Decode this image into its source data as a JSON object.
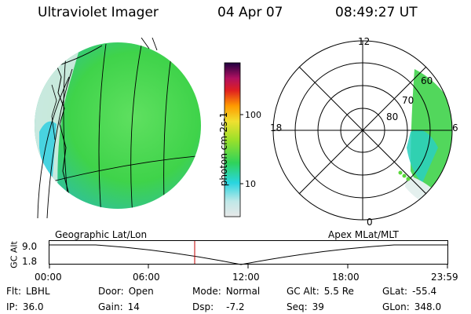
{
  "header": {
    "title": "Ultraviolet Imager",
    "date": "04 Apr 07",
    "time": "08:49:27 UT"
  },
  "colorbar": {
    "unit": "photon cm-2s-1",
    "ticks": [
      "100",
      "10"
    ]
  },
  "polar": {
    "mlt_labels": [
      "12",
      "18",
      "6",
      "0"
    ],
    "lat_labels": [
      "60",
      "70",
      "80"
    ]
  },
  "strip": {
    "left_label": "Geographic Lat/Lon",
    "right_label": "Apex MLat/MLT",
    "y_axis_label": "GC Alt",
    "y_ticks": [
      "9.0",
      "1.8"
    ],
    "x_ticks": [
      "00:00",
      "06:00",
      "12:00",
      "18:00",
      "23:59"
    ],
    "marker_color": "#c00000"
  },
  "info": {
    "flt": {
      "label": "Flt:",
      "value": "LBHL"
    },
    "ip": {
      "label": "IP:",
      "value": "36.0"
    },
    "door": {
      "label": "Door:",
      "value": "Open"
    },
    "gain": {
      "label": "Gain:",
      "value": "14"
    },
    "mode": {
      "label": "Mode:",
      "value": "Normal"
    },
    "dsp": {
      "label": "Dsp:",
      "value": "-7.2"
    },
    "gcalt": {
      "label": "GC Alt:",
      "value": "5.5 Re"
    },
    "seq": {
      "label": "Seq:",
      "value": "39"
    },
    "glat": {
      "label": "GLat:",
      "value": "-55.4"
    },
    "glon": {
      "label": "GLon:",
      "value": "348.0"
    }
  }
}
